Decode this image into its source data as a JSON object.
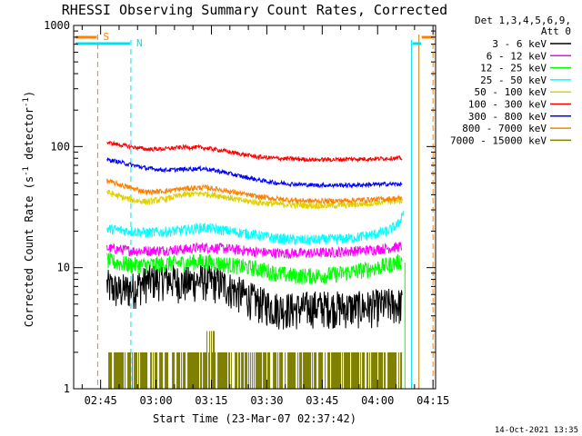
{
  "chart_data": {
    "type": "line",
    "title": "RHESSI Observing Summary Count Rates, Corrected",
    "xlabel": "Start Time (23-Mar-07 02:37:42)",
    "ylabel_main": "Corrected Count Rate (s",
    "ylabel_sup1": "-1",
    "ylabel_mid": " detector",
    "ylabel_sup2": "-1",
    "ylabel_end": ")",
    "yscale": "log",
    "ylim": [
      1,
      1000
    ],
    "xlim_min": [
      0,
      98
    ],
    "yticks": [
      {
        "v": 1,
        "label": "1"
      },
      {
        "v": 10,
        "label": "10"
      },
      {
        "v": 100,
        "label": "100"
      },
      {
        "v": 1000,
        "label": "1000"
      }
    ],
    "xticks": [
      {
        "v": 7.3,
        "label": "02:45"
      },
      {
        "v": 22.3,
        "label": "03:00"
      },
      {
        "v": 37.3,
        "label": "03:15"
      },
      {
        "v": 52.3,
        "label": "03:30"
      },
      {
        "v": 67.3,
        "label": "03:45"
      },
      {
        "v": 82.3,
        "label": "04:00"
      },
      {
        "v": 97.3,
        "label": "04:15"
      }
    ],
    "legend_header": [
      "Det 1,3,4,5,6,9,",
      "Att 0"
    ],
    "legend_position": "right",
    "markers": [
      {
        "label": "S",
        "color": "#ff8000",
        "x": 6.5
      },
      {
        "label": "N",
        "color": "#00e0f0",
        "x": 15.5
      }
    ],
    "series": [
      {
        "name": "3 - 6 keV",
        "color": "#000000",
        "x": [
          9,
          12,
          16,
          20,
          25,
          30,
          35,
          40,
          45,
          50,
          55,
          60,
          65,
          70,
          75,
          80,
          85,
          89
        ],
        "y": [
          7.2,
          6.5,
          6.8,
          7.8,
          8.2,
          7.5,
          8.0,
          7.4,
          6.2,
          5.2,
          4.7,
          4.6,
          4.8,
          4.8,
          4.7,
          4.8,
          5.0,
          5.0
        ]
      },
      {
        "name": "6 - 12 keV",
        "color": "#ff00ff",
        "x": [
          9,
          12,
          16,
          20,
          25,
          30,
          35,
          40,
          45,
          50,
          55,
          60,
          65,
          70,
          75,
          80,
          85,
          89
        ],
        "y": [
          14.5,
          14.2,
          13.8,
          13.8,
          14.0,
          14.2,
          14.8,
          14.5,
          14.0,
          13.5,
          13.2,
          13.2,
          13.2,
          13.4,
          13.7,
          14.0,
          14.5,
          15.0
        ]
      },
      {
        "name": "12 - 25 keV",
        "color": "#00ff00",
        "x": [
          9,
          12,
          16,
          20,
          25,
          30,
          35,
          40,
          45,
          50,
          55,
          60,
          65,
          70,
          75,
          80,
          85,
          89
        ],
        "y": [
          11.5,
          11.0,
          10.5,
          10.5,
          10.8,
          11.0,
          11.3,
          10.8,
          10.3,
          9.8,
          9.0,
          8.6,
          8.6,
          8.8,
          9.2,
          9.8,
          10.5,
          11.5
        ]
      },
      {
        "name": "25 - 50 keV",
        "color": "#00ffff",
        "x": [
          9,
          12,
          16,
          20,
          25,
          30,
          35,
          40,
          45,
          50,
          55,
          60,
          65,
          70,
          75,
          80,
          85,
          88,
          89.5
        ],
        "y": [
          21,
          20.5,
          20,
          19.5,
          19.8,
          20.5,
          21.5,
          20.5,
          19.5,
          18.5,
          17.5,
          17,
          17,
          17.2,
          17.5,
          18.5,
          20,
          23,
          30
        ]
      },
      {
        "name": "50 - 100 keV",
        "color": "#e0d000",
        "x": [
          9,
          12,
          16,
          20,
          25,
          30,
          35,
          40,
          45,
          50,
          55,
          60,
          65,
          70,
          75,
          80,
          85,
          89
        ],
        "y": [
          42,
          39,
          36,
          35,
          37,
          40,
          41,
          39,
          36,
          34.5,
          33.5,
          33,
          32.5,
          32.5,
          33,
          34,
          35,
          36
        ]
      },
      {
        "name": "100 - 300 keV",
        "color": "#ff0000",
        "x": [
          9,
          12,
          16,
          20,
          25,
          30,
          35,
          40,
          45,
          50,
          55,
          60,
          65,
          70,
          75,
          80,
          85,
          89
        ],
        "y": [
          108,
          104,
          99,
          95,
          96,
          99,
          98,
          93,
          87,
          82,
          80,
          79,
          78,
          78,
          79,
          79,
          80,
          80
        ]
      },
      {
        "name": "300 - 800 keV",
        "color": "#0000ff",
        "x": [
          9,
          12,
          16,
          20,
          25,
          30,
          35,
          40,
          45,
          50,
          55,
          60,
          65,
          70,
          75,
          80,
          85,
          89
        ],
        "y": [
          78,
          75,
          70,
          66,
          64,
          65,
          66,
          62,
          57,
          53,
          50,
          49,
          48,
          48,
          48,
          48.5,
          49,
          49
        ]
      },
      {
        "name": "800 - 7000 keV",
        "color": "#ff8000",
        "x": [
          9,
          12,
          16,
          20,
          25,
          30,
          35,
          40,
          45,
          50,
          55,
          60,
          65,
          70,
          75,
          80,
          85,
          89
        ],
        "y": [
          52,
          49,
          45,
          42,
          43,
          45,
          46,
          44,
          41,
          38.5,
          37,
          36,
          35.5,
          35.5,
          36,
          36.5,
          37,
          37.5
        ]
      },
      {
        "name": "7000 - 15000 keV",
        "color": "#808000",
        "x": [
          9,
          20,
          30,
          35,
          37,
          40,
          50,
          60,
          70,
          80,
          86,
          89
        ],
        "y": [
          1.6,
          1.6,
          1.6,
          1.8,
          2.6,
          1.6,
          1.6,
          1.6,
          1.6,
          1.7,
          1.6,
          1.6
        ]
      }
    ]
  },
  "timestamp": "14-Oct-2021 13:35"
}
